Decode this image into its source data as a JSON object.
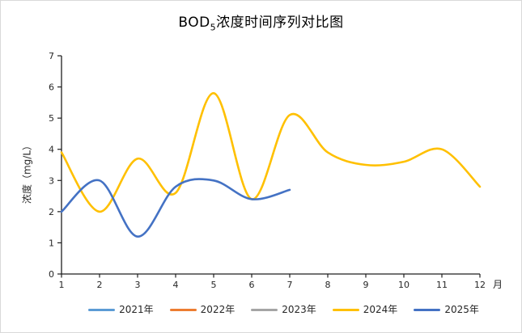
{
  "window": {
    "background": "#ffffff",
    "border_color": "#d9d9d9"
  },
  "chart_data": {
    "type": "line",
    "title": {
      "prefix": "BOD",
      "subscript": "5",
      "suffix": "浓度时间序列对比图"
    },
    "ylabel": "浓度（mg/L）",
    "x_unit_label": "月",
    "x_categories": [
      1,
      2,
      3,
      4,
      5,
      6,
      7,
      8,
      9,
      10,
      11,
      12
    ],
    "y_ticks": [
      0,
      1,
      2,
      3,
      4,
      5,
      6,
      7
    ],
    "ylim": [
      0,
      7
    ],
    "grid": false,
    "smooth": true,
    "legend_position": "bottom",
    "axis_color": "#1f1f1f",
    "tick_label_color": "#262626",
    "series": [
      {
        "name": "2021年",
        "color": "#5b9bd5",
        "values": []
      },
      {
        "name": "2022年",
        "color": "#ed7d31",
        "values": []
      },
      {
        "name": "2023年",
        "color": "#a5a5a5",
        "values": []
      },
      {
        "name": "2024年",
        "color": "#ffc000",
        "values": [
          3.9,
          2.0,
          3.7,
          2.6,
          5.8,
          2.4,
          5.1,
          3.9,
          3.5,
          3.6,
          4.0,
          2.8
        ]
      },
      {
        "name": "2025年",
        "color": "#4472c4",
        "values": [
          2.0,
          3.0,
          1.2,
          2.8,
          3.0,
          2.4,
          2.7
        ]
      }
    ]
  }
}
